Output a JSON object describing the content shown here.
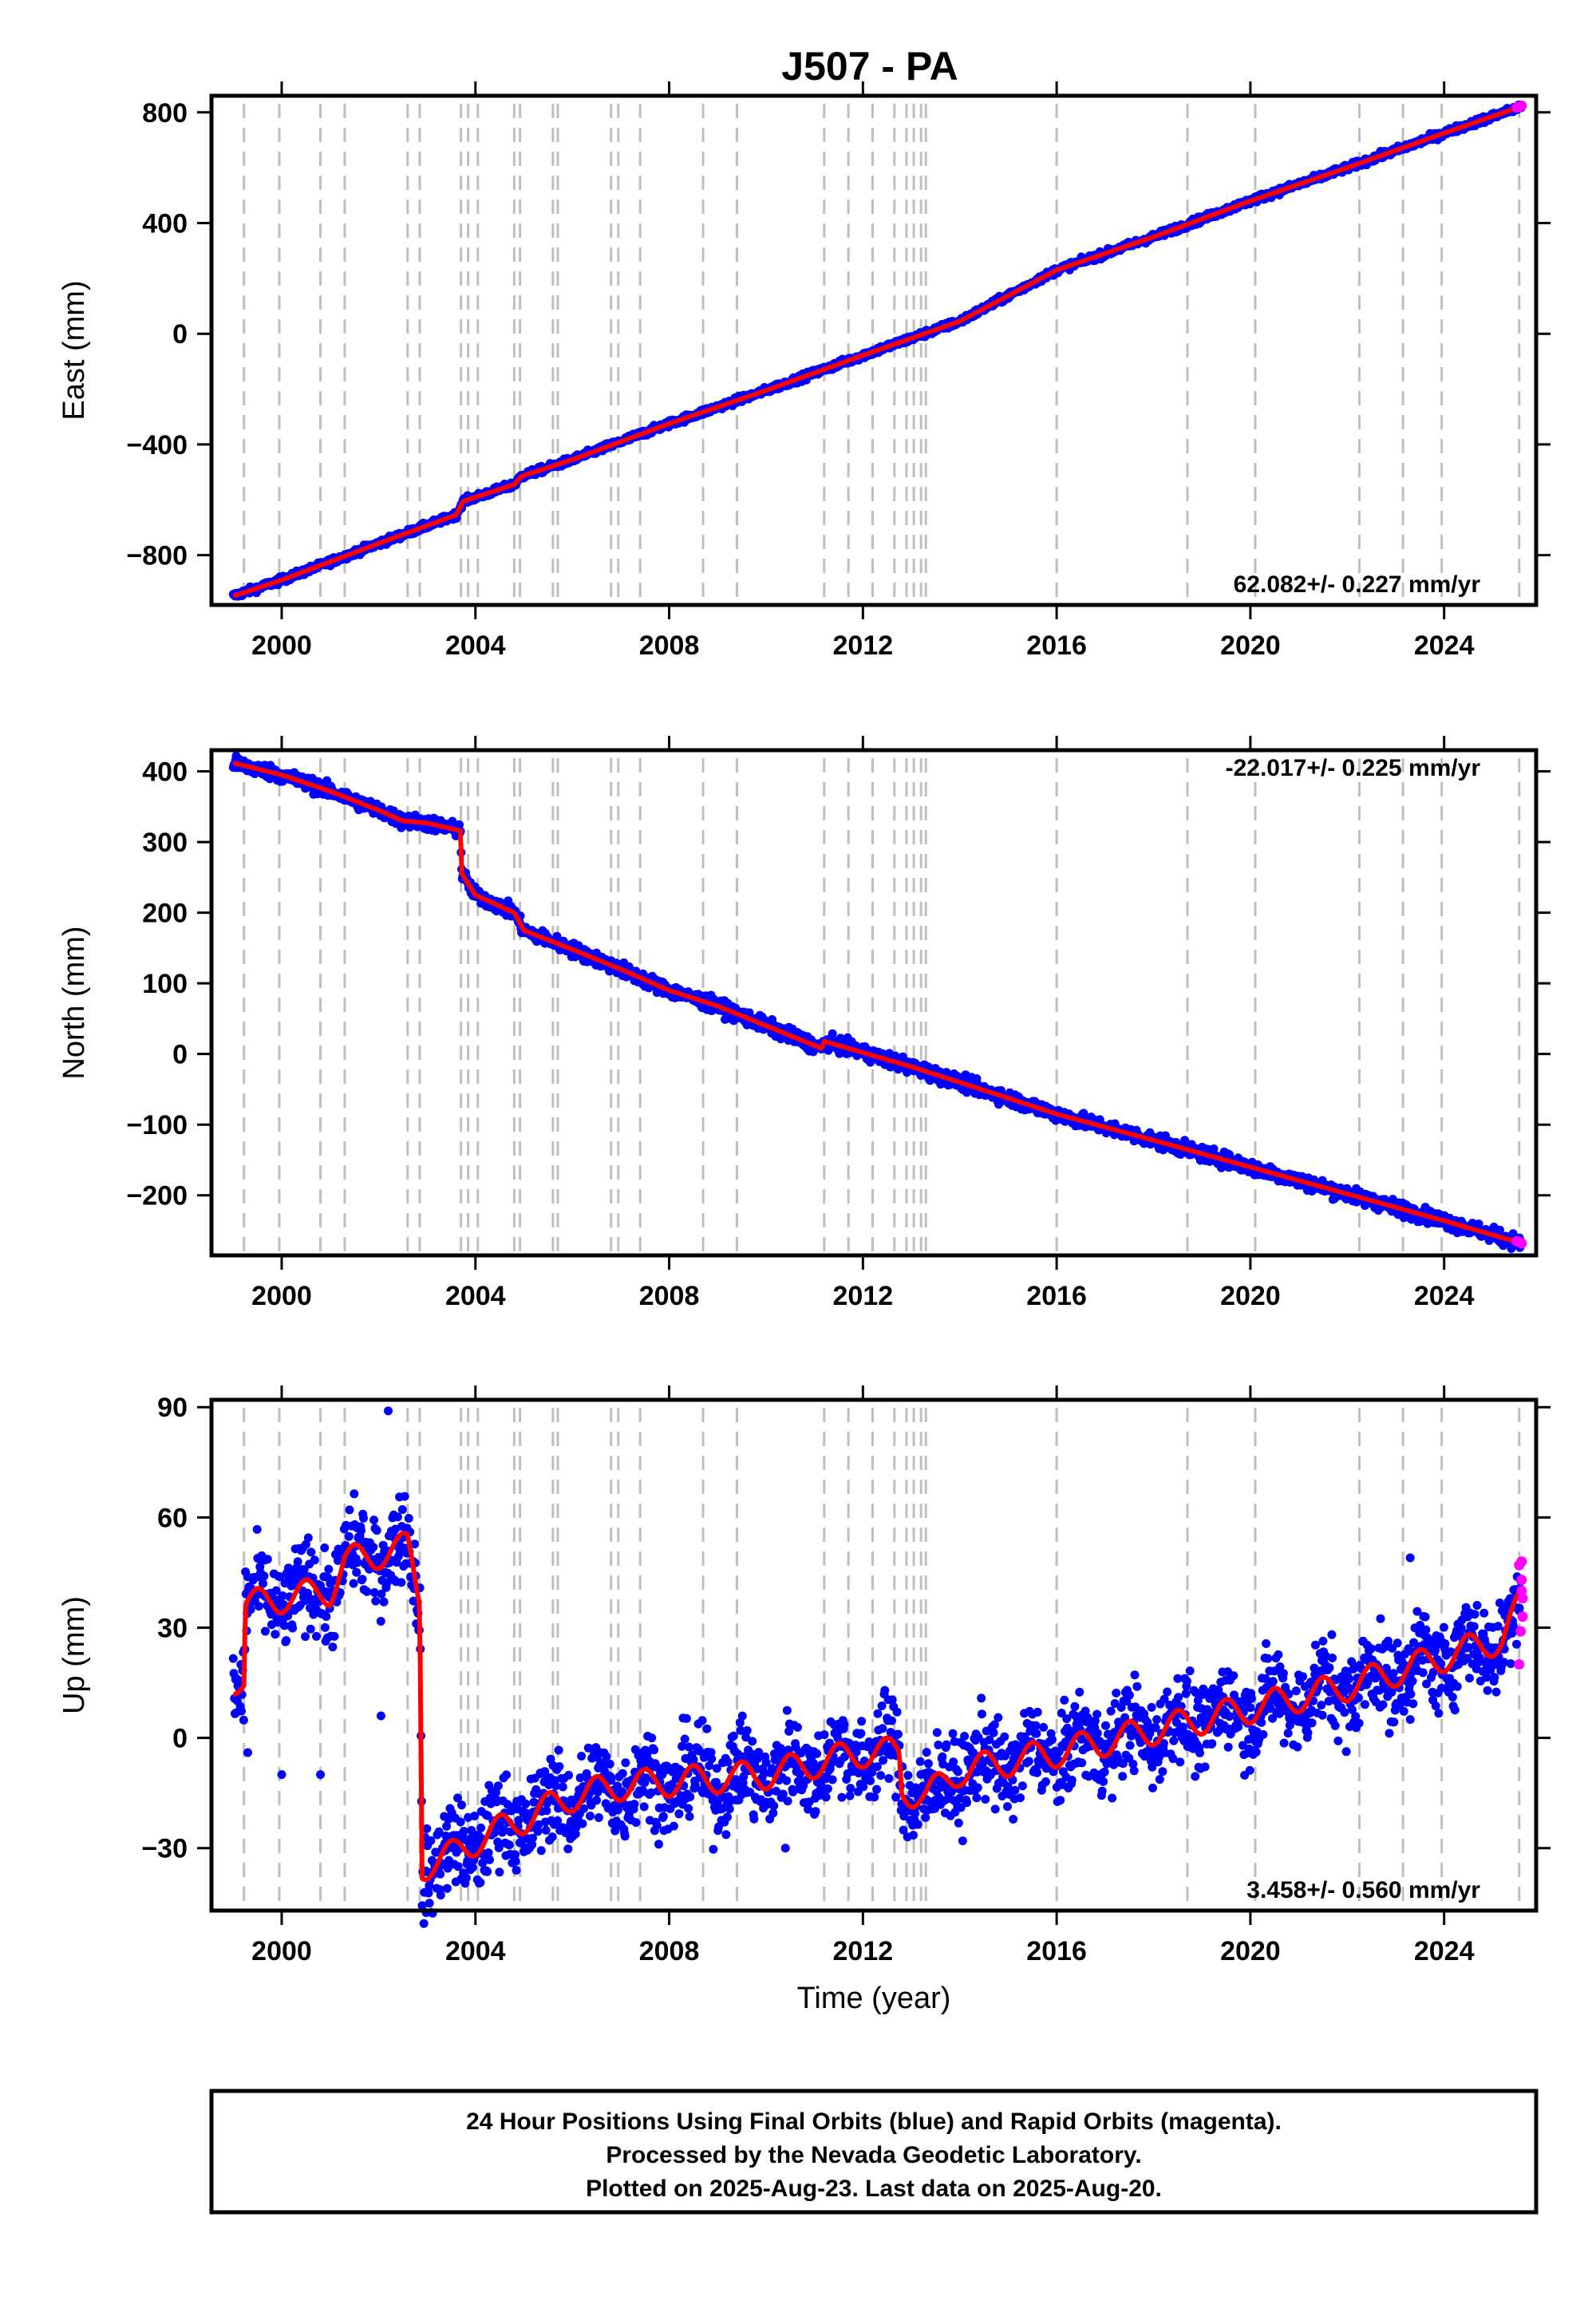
{
  "title": "J507 - PA",
  "xlabel": "Time (year)",
  "x_ticks": [
    "2000",
    "2004",
    "2008",
    "2012",
    "2016",
    "2020",
    "2024"
  ],
  "xlim": [
    1998.55,
    2025.9
  ],
  "colors": {
    "final_orbits": "#0000ff",
    "rapid_orbits": "#ff00ff",
    "model": "#ff0000",
    "event_lines": "#bfbfbf",
    "frame": "#000000"
  },
  "event_lines": [
    1999.22,
    1999.95,
    2000.8,
    2001.3,
    2002.6,
    2002.85,
    2003.7,
    2003.85,
    2004.05,
    2004.8,
    2004.92,
    2005.6,
    2005.7,
    2006.8,
    2006.95,
    2007.4,
    2008.7,
    2009.4,
    2011.2,
    2011.7,
    2012.2,
    2012.65,
    2012.9,
    2013.05,
    2013.2,
    2013.3,
    2016.0,
    2018.7,
    2020.1,
    2022.25,
    2023.15,
    2023.95,
    2025.55
  ],
  "footer": {
    "line1": "24 Hour Positions Using Final Orbits (blue) and Rapid Orbits (magenta).",
    "line2": "Processed by the Nevada Geodetic Laboratory.",
    "line3": "Plotted on 2025-Aug-23. Last data on 2025-Aug-20."
  },
  "chart_data": [
    {
      "type": "scatter",
      "name": "east",
      "ylabel": "East (mm)",
      "ylim": [
        -980,
        860
      ],
      "y_ticks": [
        "800",
        "400",
        "0",
        "-400",
        "-800"
      ],
      "y_tick_values": [
        800,
        400,
        0,
        -400,
        -800
      ],
      "rate_label": "62.082+/- 0.227 mm/yr",
      "rate_position": "bottom-right",
      "trend_points": [
        [
          1999.0,
          -948
        ],
        [
          2000.0,
          -890
        ],
        [
          2002.0,
          -758
        ],
        [
          2003.6,
          -655
        ],
        [
          2003.75,
          -605
        ],
        [
          2004.8,
          -545
        ],
        [
          2004.95,
          -515
        ],
        [
          2006.0,
          -455
        ],
        [
          2008.0,
          -325
        ],
        [
          2010.0,
          -205
        ],
        [
          2012.0,
          -78
        ],
        [
          2014.0,
          45
        ],
        [
          2016.0,
          230
        ],
        [
          2018.0,
          350
        ],
        [
          2020.0,
          480
        ],
        [
          2022.0,
          600
        ],
        [
          2024.0,
          725
        ],
        [
          2025.6,
          822
        ]
      ],
      "noise_mm": 6,
      "rapid_points": [
        [
          2025.5,
          818
        ],
        [
          2025.56,
          820
        ],
        [
          2025.6,
          824
        ]
      ]
    },
    {
      "type": "scatter",
      "name": "north",
      "ylabel": "North (mm)",
      "ylim": [
        -285,
        430
      ],
      "y_ticks": [
        "400",
        "300",
        "200",
        "100",
        "0",
        "-100",
        "-200"
      ],
      "y_tick_values": [
        400,
        300,
        200,
        100,
        0,
        -100,
        -200
      ],
      "rate_label": "-22.017+/- 0.225 mm/yr",
      "rate_position": "top-right",
      "trend_points": [
        [
          1999.0,
          412
        ],
        [
          2000.0,
          395
        ],
        [
          2001.0,
          372
        ],
        [
          2002.0,
          345
        ],
        [
          2002.5,
          330
        ],
        [
          2003.0,
          327
        ],
        [
          2003.69,
          316
        ],
        [
          2003.72,
          255
        ],
        [
          2004.0,
          225
        ],
        [
          2004.8,
          200
        ],
        [
          2005.0,
          175
        ],
        [
          2006.0,
          148
        ],
        [
          2007.0,
          120
        ],
        [
          2008.0,
          90
        ],
        [
          2009.0,
          68
        ],
        [
          2010.0,
          40
        ],
        [
          2011.15,
          8
        ],
        [
          2011.2,
          18
        ],
        [
          2012.0,
          2
        ],
        [
          2013.0,
          -18
        ],
        [
          2014.0,
          -40
        ],
        [
          2016.0,
          -85
        ],
        [
          2018.0,
          -122
        ],
        [
          2020.0,
          -160
        ],
        [
          2022.0,
          -198
        ],
        [
          2024.0,
          -236
        ],
        [
          2025.6,
          -268
        ]
      ],
      "noise_mm": 5,
      "rapid_points": [
        [
          2025.5,
          -265
        ],
        [
          2025.56,
          -266
        ],
        [
          2025.6,
          -268
        ]
      ]
    },
    {
      "type": "scatter",
      "name": "up",
      "ylabel": "Up (mm)",
      "ylim": [
        -47,
        92
      ],
      "y_ticks": [
        "90",
        "60",
        "30",
        "0",
        "-30"
      ],
      "y_tick_values": [
        90,
        60,
        30,
        0,
        -30
      ],
      "rate_label": "3.458+/- 0.560 mm/yr",
      "rate_position": "bottom-right",
      "trend_points": [
        [
          1999.0,
          16
        ],
        [
          1999.22,
          15
        ],
        [
          1999.25,
          36
        ],
        [
          2000.0,
          38
        ],
        [
          2001.0,
          40
        ],
        [
          2001.3,
          48
        ],
        [
          2002.0,
          50
        ],
        [
          2002.6,
          52
        ],
        [
          2002.85,
          38
        ],
        [
          2002.9,
          -35
        ],
        [
          2003.5,
          -32
        ],
        [
          2004.0,
          -28
        ],
        [
          2005.0,
          -22
        ],
        [
          2006.0,
          -16
        ],
        [
          2007.0,
          -13
        ],
        [
          2008.0,
          -12
        ],
        [
          2010.0,
          -10
        ],
        [
          2012.0,
          -4
        ],
        [
          2012.75,
          -4
        ],
        [
          2012.8,
          -14
        ],
        [
          2013.3,
          -16
        ],
        [
          2014.0,
          -9
        ],
        [
          2016.0,
          -4
        ],
        [
          2018.0,
          2
        ],
        [
          2020.0,
          8
        ],
        [
          2022.0,
          14
        ],
        [
          2024.0,
          22
        ],
        [
          2025.2,
          27
        ],
        [
          2025.6,
          37
        ]
      ],
      "seasonal_amplitude_mm": 4,
      "noise_mm": 6,
      "outliers": [
        [
          2000.0,
          -10
        ],
        [
          2000.8,
          -10
        ],
        [
          1999.3,
          -4
        ],
        [
          2002.05,
          6
        ],
        [
          2002.2,
          89
        ],
        [
          2003.05,
          -45
        ],
        [
          2023.3,
          49
        ],
        [
          2023.3,
          5
        ],
        [
          2010.4,
          -30
        ]
      ],
      "rapid_points": [
        [
          2025.55,
          20
        ],
        [
          2025.55,
          47
        ],
        [
          2025.6,
          43
        ],
        [
          2025.62,
          38
        ],
        [
          2025.62,
          33
        ],
        [
          2025.58,
          29
        ],
        [
          2025.6,
          40
        ],
        [
          2025.6,
          48
        ]
      ]
    }
  ]
}
